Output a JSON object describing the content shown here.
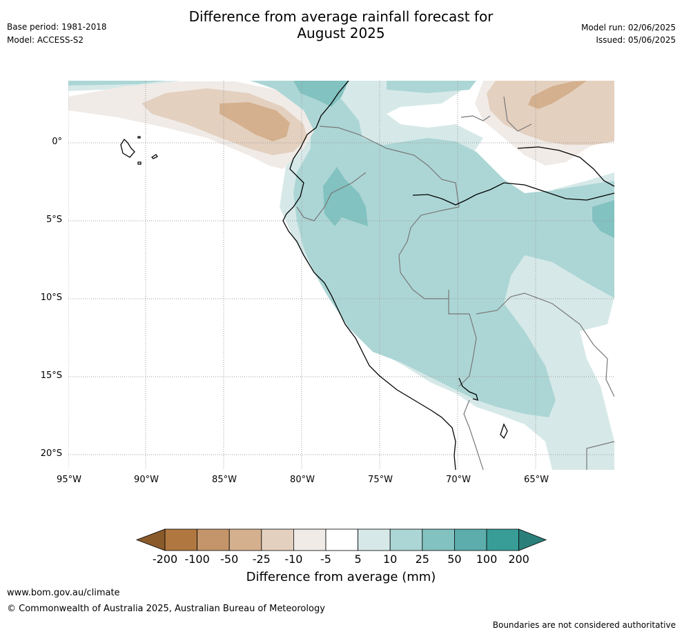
{
  "header": {
    "base_period": "Base period: 1981-2018",
    "model": "Model: ACCESS-S2",
    "model_run": "Model run: 02/06/2025",
    "issued": "Issued: 05/06/2025"
  },
  "title": {
    "line1": "Difference from average rainfall forecast for",
    "line2": "August 2025"
  },
  "map": {
    "lat_labels": [
      "0°",
      "5°S",
      "10°S",
      "15°S",
      "20°S"
    ],
    "lon_labels": [
      "95°W",
      "90°W",
      "85°W",
      "80°W",
      "75°W",
      "70°W",
      "65°W"
    ]
  },
  "colorbar": {
    "title": "Difference from average (mm)",
    "ticks": [
      "-200",
      "-100",
      "-50",
      "-25",
      "-10",
      "-5",
      "5",
      "10",
      "25",
      "50",
      "100",
      "200"
    ],
    "colors": {
      "below_-200": "#8a5a2b",
      "-200_-100": "#b07840",
      "-100_-50": "#c4956a",
      "-50_-25": "#d4b08e",
      "-25_-10": "#e4d0bf",
      "-10_-5": "#f0ebe7",
      "-5_5": "#ffffff",
      "5_10": "#d6e9e8",
      "10_25": "#acd6d5",
      "25_50": "#82c2c0",
      "50_100": "#5cadab",
      "100_200": "#389c97",
      "above_200": "#2a7f7b"
    }
  },
  "footer": {
    "url": "www.bom.gov.au/climate",
    "copyright": "© Commonwealth of Australia 2025, Australian Bureau of Meteorology",
    "disclaimer": "Boundaries are not considered authoritative"
  }
}
